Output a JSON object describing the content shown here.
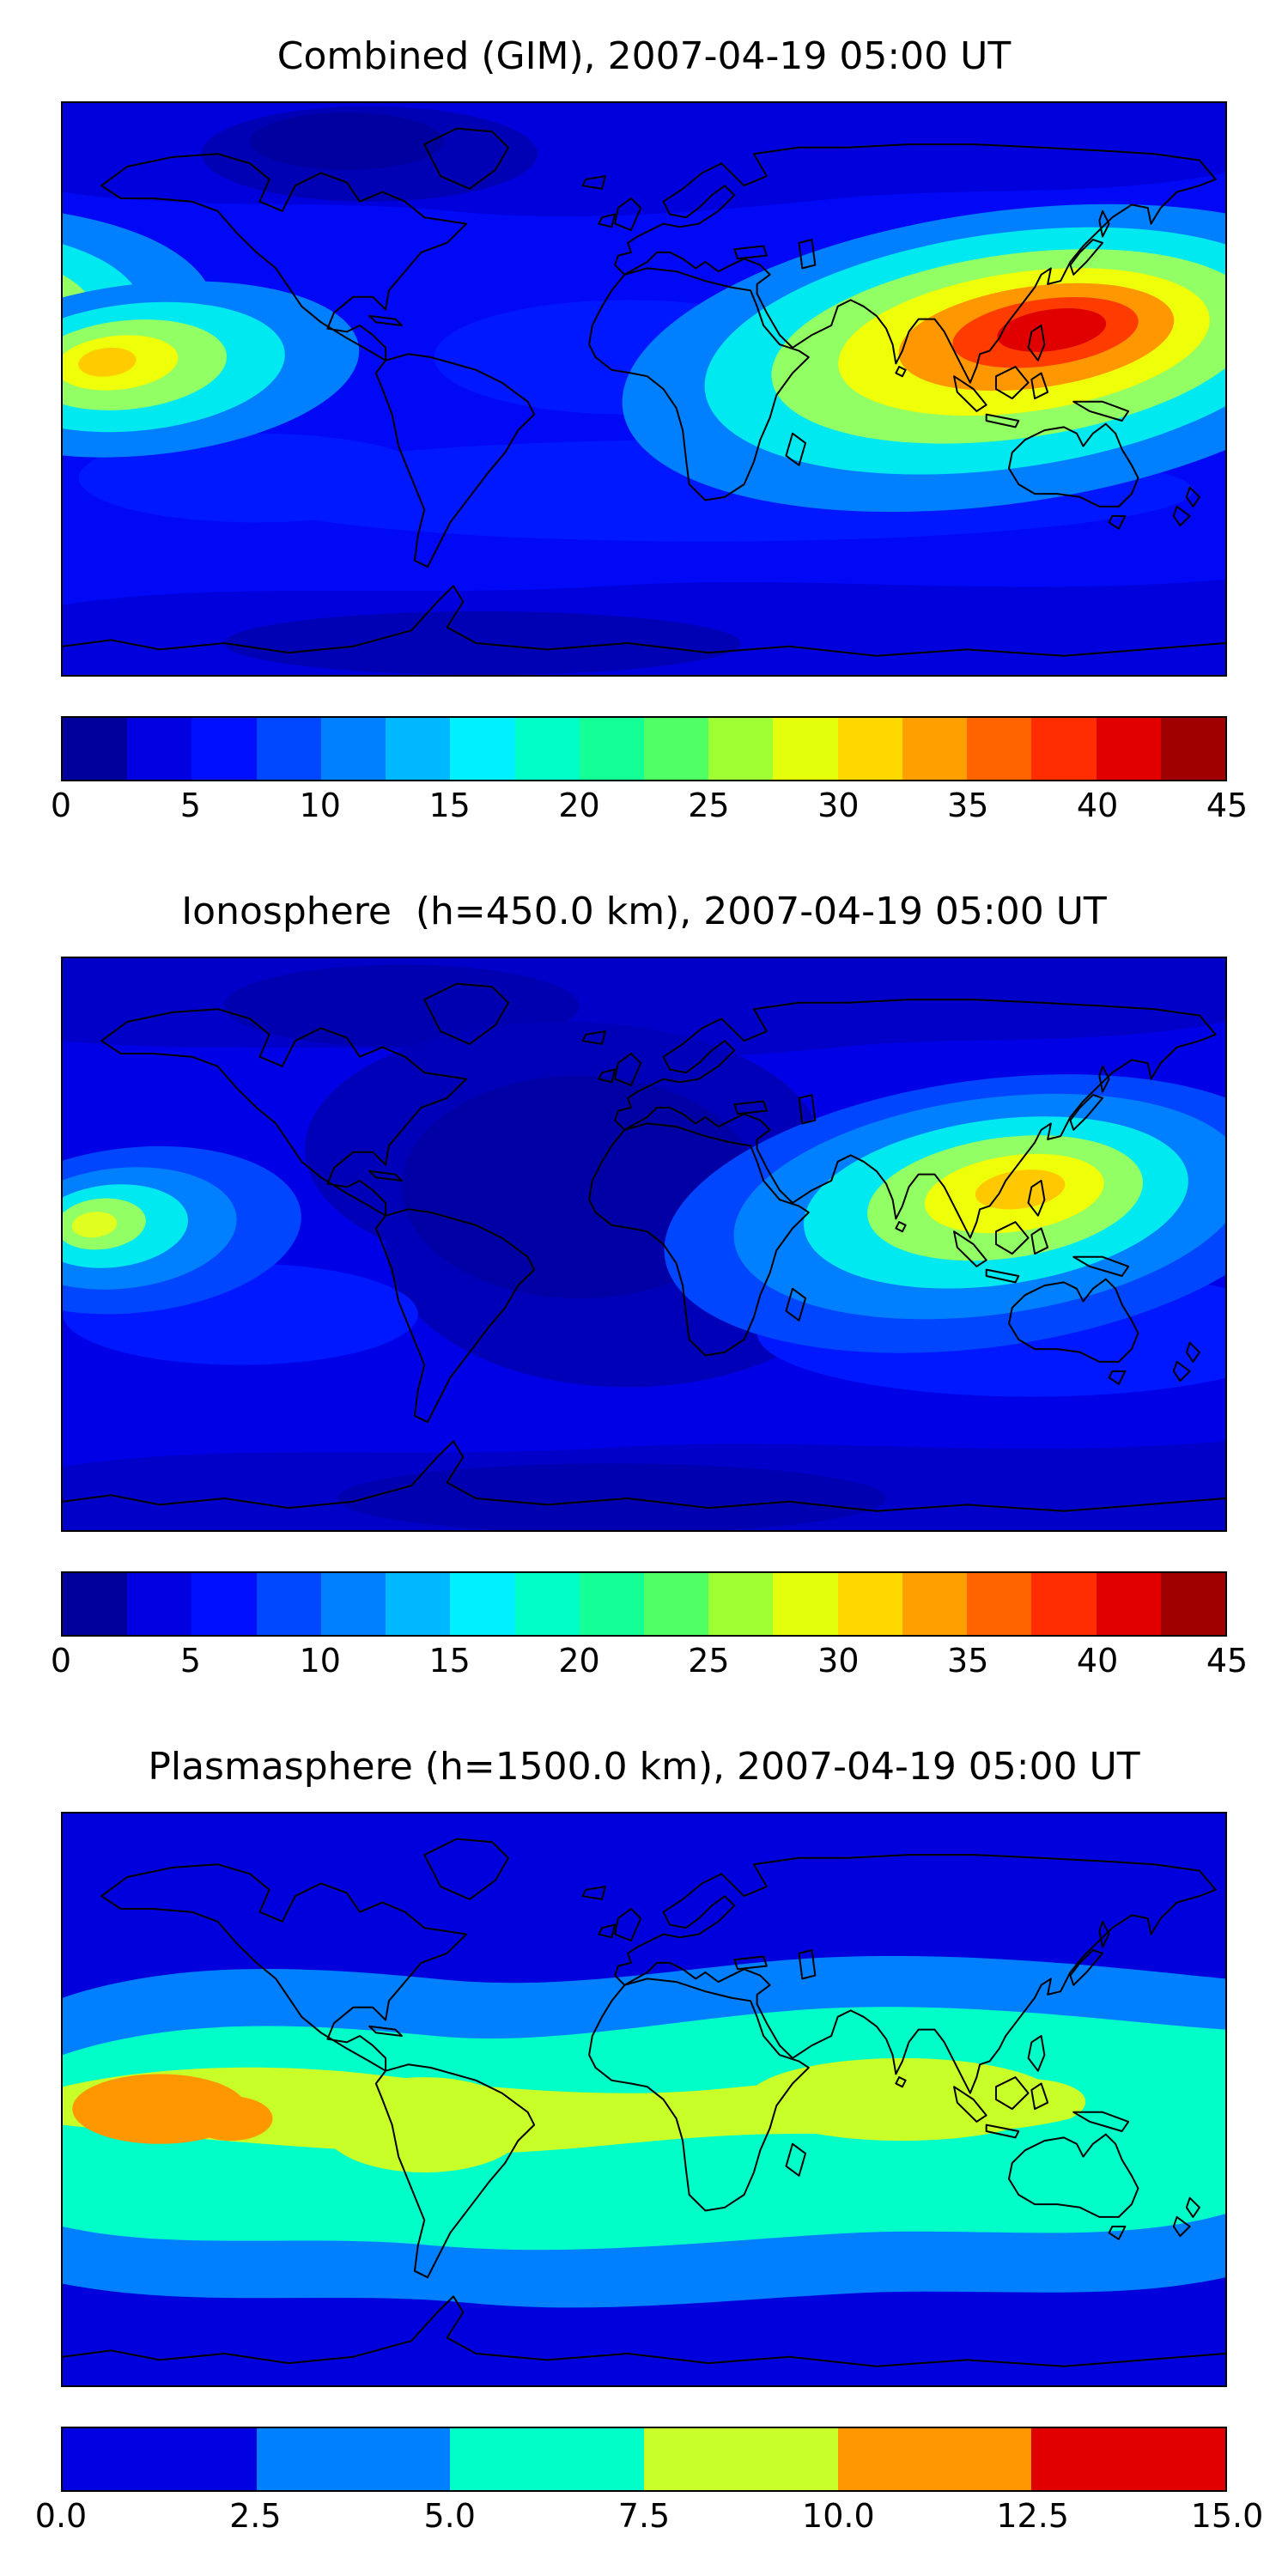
{
  "panels": [
    {
      "title": "Combined (GIM), 2007-04-19 05:00 UT",
      "colorbar": {
        "ticks": [
          "0",
          "5",
          "10",
          "15",
          "20",
          "25",
          "30",
          "35",
          "40",
          "45"
        ],
        "colors": [
          "#00009c",
          "#0000e0",
          "#0010ff",
          "#0048ff",
          "#0080ff",
          "#00b8ff",
          "#00f0ff",
          "#00ffc8",
          "#14ff96",
          "#50ff64",
          "#a0ff32",
          "#e4ff0c",
          "#ffd800",
          "#ffa000",
          "#ff6400",
          "#ff2d00",
          "#e00000",
          "#a00000"
        ]
      }
    },
    {
      "title": "Ionosphere  (h=450.0 km), 2007-04-19 05:00 UT",
      "colorbar": {
        "ticks": [
          "0",
          "5",
          "10",
          "15",
          "20",
          "25",
          "30",
          "35",
          "40",
          "45"
        ],
        "colors": [
          "#00009c",
          "#0000e0",
          "#0010ff",
          "#0048ff",
          "#0080ff",
          "#00b8ff",
          "#00f0ff",
          "#00ffc8",
          "#14ff96",
          "#50ff64",
          "#a0ff32",
          "#e4ff0c",
          "#ffd800",
          "#ffa000",
          "#ff6400",
          "#ff2d00",
          "#e00000",
          "#a00000"
        ]
      }
    },
    {
      "title": "Plasmasphere (h=1500.0 km), 2007-04-19 05:00 UT",
      "colorbar": {
        "ticks": [
          "0.0",
          "2.5",
          "5.0",
          "7.5",
          "10.0",
          "12.5",
          "15.0"
        ],
        "colors": [
          "#0000e0",
          "#0080ff",
          "#00ffc8",
          "#c8ff28",
          "#ff9700",
          "#e00000"
        ]
      }
    }
  ],
  "chart_data": [
    {
      "type": "heatmap",
      "subtype": "filled-contour-world-map",
      "title": "Combined (GIM), 2007-04-19 05:00 UT",
      "projection": "equirectangular",
      "lon_range": [
        -180,
        180
      ],
      "lat_range": [
        -90,
        90
      ],
      "colormap": "jet",
      "value_range": [
        0,
        45
      ],
      "contour_interval": 2.5,
      "colorbar_ticks": [
        0,
        5,
        10,
        15,
        20,
        25,
        30,
        35,
        40,
        45
      ],
      "features": [
        {
          "name": "primary-maximum-southeast-asia",
          "lon": 115,
          "lat": 12,
          "value_approx": 43
        },
        {
          "name": "secondary-maximum-central-pacific",
          "lon": -156,
          "lat": 8,
          "value_approx": 31
        },
        {
          "name": "high-latitude-minimum-north-america",
          "lon": -90,
          "lat": 72,
          "value_approx": 2
        },
        {
          "name": "background-ocean-level",
          "value_approx": 7
        }
      ]
    },
    {
      "type": "heatmap",
      "subtype": "filled-contour-world-map",
      "title": "Ionosphere  (h=450.0 km), 2007-04-19 05:00 UT",
      "projection": "equirectangular",
      "lon_range": [
        -180,
        180
      ],
      "lat_range": [
        -90,
        90
      ],
      "colormap": "jet",
      "value_range": [
        0,
        45
      ],
      "contour_interval": 2.5,
      "colorbar_ticks": [
        0,
        5,
        10,
        15,
        20,
        25,
        30,
        35,
        40,
        45
      ],
      "features": [
        {
          "name": "primary-maximum-southeast-asia",
          "lon": 113,
          "lat": 13,
          "value_approx": 33
        },
        {
          "name": "secondary-maximum-central-pacific",
          "lon": -162,
          "lat": 6,
          "value_approx": 27
        },
        {
          "name": "broad-minimum-atlantic-africa",
          "lon": -15,
          "lat": 10,
          "value_approx": 2
        },
        {
          "name": "background-ocean-level",
          "value_approx": 5
        }
      ]
    },
    {
      "type": "heatmap",
      "subtype": "filled-contour-world-map",
      "title": "Plasmasphere (h=1500.0 km), 2007-04-19 05:00 UT",
      "projection": "equirectangular",
      "lon_range": [
        -180,
        180
      ],
      "lat_range": [
        -90,
        90
      ],
      "colormap": "jet",
      "value_range": [
        0,
        15
      ],
      "contour_interval": 2.5,
      "colorbar_ticks": [
        0.0,
        2.5,
        5.0,
        7.5,
        10.0,
        12.5,
        15.0
      ],
      "features": [
        {
          "name": "equatorial-band",
          "lat_extent": [
            -30,
            20
          ],
          "value_approx": 8
        },
        {
          "name": "maximum-central-pacific",
          "lon": -150,
          "lat": 0,
          "value_approx": 11
        },
        {
          "name": "high-latitude-background",
          "value_approx": 1.5
        }
      ]
    }
  ]
}
